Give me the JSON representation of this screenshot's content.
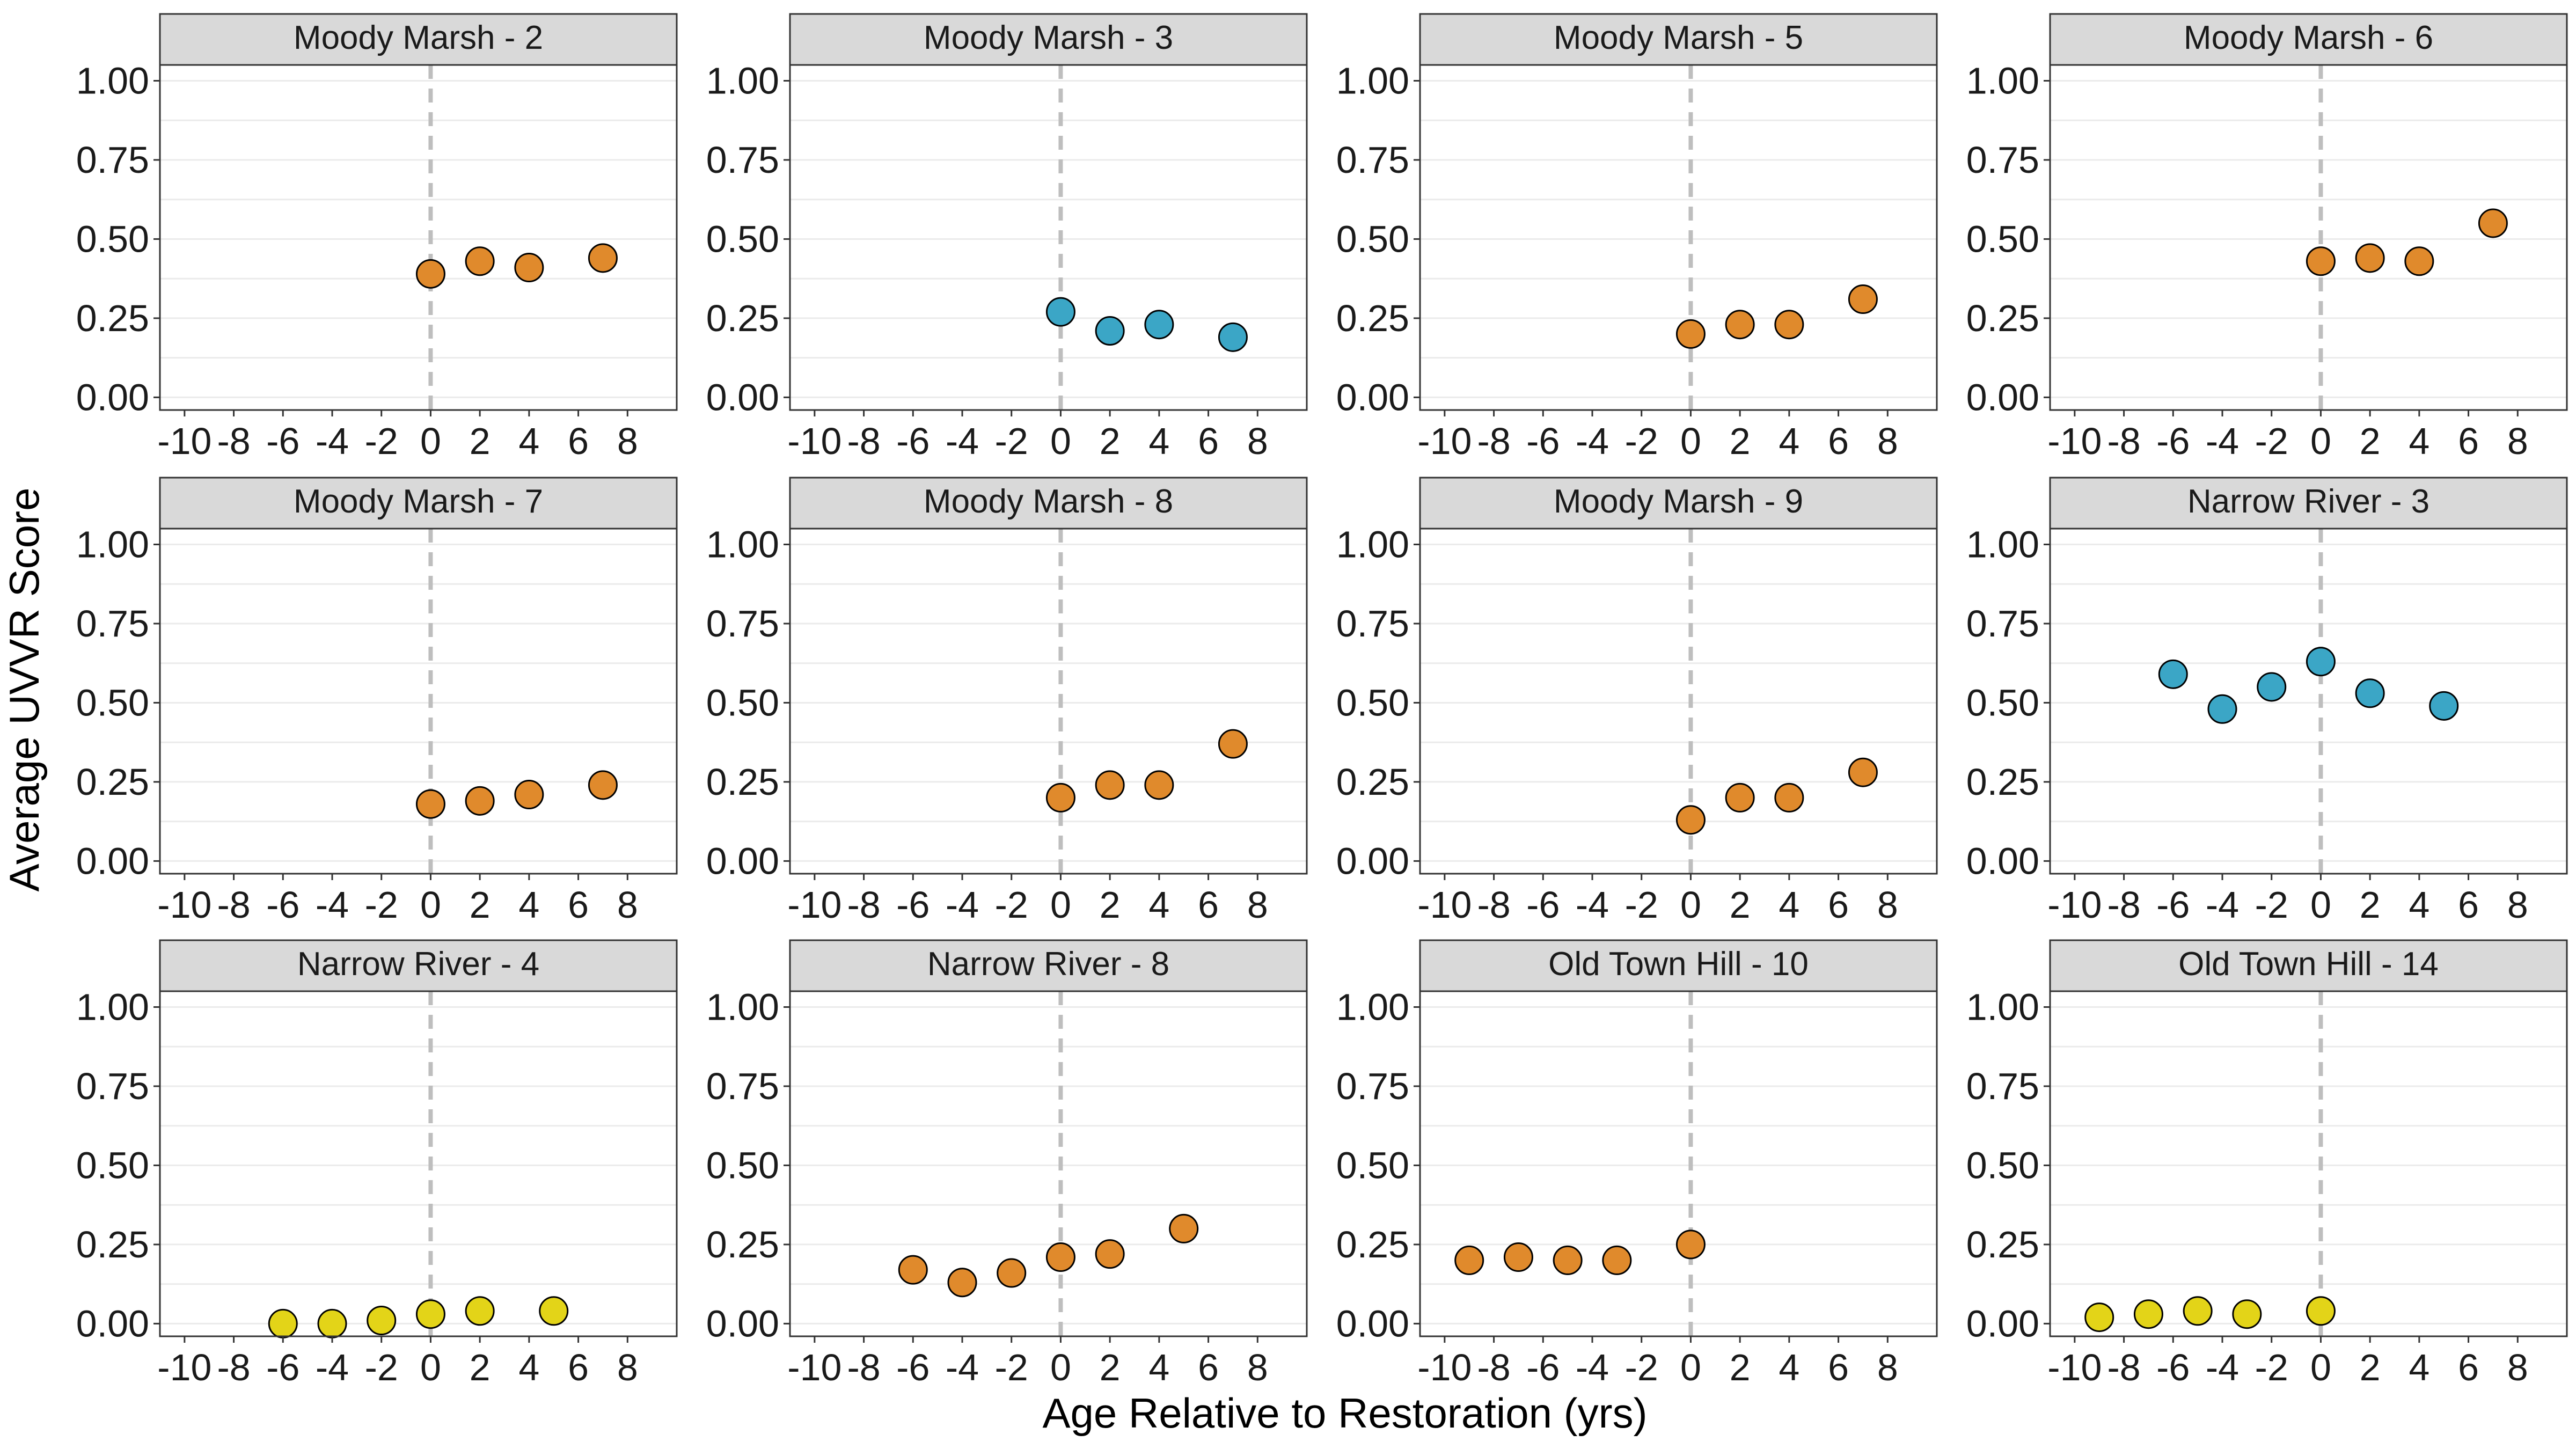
{
  "figure": {
    "ylabel": "Average UVVR Score",
    "xlabel": "Age Relative to Restoration (yrs)"
  },
  "colors": {
    "orange": "#E08A2C",
    "blue": "#3BA6C6",
    "yellow": "#E3D418",
    "strip": "#D9D9D9",
    "grid": "#EBEBEB",
    "refline": "#BEBEBE"
  },
  "chart_data": [
    {
      "type": "scatter",
      "title": "Moody Marsh - 2",
      "color": "orange",
      "x": [
        0,
        2,
        4,
        7
      ],
      "y": [
        0.39,
        0.43,
        0.41,
        0.44
      ],
      "xlim": [
        -11,
        10
      ],
      "ylim": [
        -0.04,
        1.05
      ],
      "xticks": [
        -10,
        -8,
        -6,
        -4,
        -2,
        0,
        2,
        4,
        6,
        8
      ],
      "yticks": [
        "0.00",
        "0.25",
        "0.50",
        "0.75",
        "1.00"
      ],
      "refline_x": 0
    },
    {
      "type": "scatter",
      "title": "Moody Marsh - 3",
      "color": "blue",
      "x": [
        0,
        2,
        4,
        7
      ],
      "y": [
        0.27,
        0.21,
        0.23,
        0.19
      ],
      "xlim": [
        -11,
        10
      ],
      "ylim": [
        -0.04,
        1.05
      ],
      "xticks": [
        -10,
        -8,
        -6,
        -4,
        -2,
        0,
        2,
        4,
        6,
        8
      ],
      "yticks": [
        "0.00",
        "0.25",
        "0.50",
        "0.75",
        "1.00"
      ],
      "refline_x": 0
    },
    {
      "type": "scatter",
      "title": "Moody Marsh - 5",
      "color": "orange",
      "x": [
        0,
        2,
        4,
        7
      ],
      "y": [
        0.2,
        0.23,
        0.23,
        0.31
      ],
      "xlim": [
        -11,
        10
      ],
      "ylim": [
        -0.04,
        1.05
      ],
      "xticks": [
        -10,
        -8,
        -6,
        -4,
        -2,
        0,
        2,
        4,
        6,
        8
      ],
      "yticks": [
        "0.00",
        "0.25",
        "0.50",
        "0.75",
        "1.00"
      ],
      "refline_x": 0
    },
    {
      "type": "scatter",
      "title": "Moody Marsh - 6",
      "color": "orange",
      "x": [
        0,
        2,
        4,
        7
      ],
      "y": [
        0.43,
        0.44,
        0.43,
        0.55
      ],
      "xlim": [
        -11,
        10
      ],
      "ylim": [
        -0.04,
        1.05
      ],
      "xticks": [
        -10,
        -8,
        -6,
        -4,
        -2,
        0,
        2,
        4,
        6,
        8
      ],
      "yticks": [
        "0.00",
        "0.25",
        "0.50",
        "0.75",
        "1.00"
      ],
      "refline_x": 0
    },
    {
      "type": "scatter",
      "title": "Moody Marsh - 7",
      "color": "orange",
      "x": [
        0,
        2,
        4,
        7
      ],
      "y": [
        0.18,
        0.19,
        0.21,
        0.24
      ],
      "xlim": [
        -11,
        10
      ],
      "ylim": [
        -0.04,
        1.05
      ],
      "xticks": [
        -10,
        -8,
        -6,
        -4,
        -2,
        0,
        2,
        4,
        6,
        8
      ],
      "yticks": [
        "0.00",
        "0.25",
        "0.50",
        "0.75",
        "1.00"
      ],
      "refline_x": 0
    },
    {
      "type": "scatter",
      "title": "Moody Marsh - 8",
      "color": "orange",
      "x": [
        0,
        2,
        4,
        7
      ],
      "y": [
        0.2,
        0.24,
        0.24,
        0.37
      ],
      "xlim": [
        -11,
        10
      ],
      "ylim": [
        -0.04,
        1.05
      ],
      "xticks": [
        -10,
        -8,
        -6,
        -4,
        -2,
        0,
        2,
        4,
        6,
        8
      ],
      "yticks": [
        "0.00",
        "0.25",
        "0.50",
        "0.75",
        "1.00"
      ],
      "refline_x": 0
    },
    {
      "type": "scatter",
      "title": "Moody Marsh - 9",
      "color": "orange",
      "x": [
        0,
        2,
        4,
        7
      ],
      "y": [
        0.13,
        0.2,
        0.2,
        0.28
      ],
      "xlim": [
        -11,
        10
      ],
      "ylim": [
        -0.04,
        1.05
      ],
      "xticks": [
        -10,
        -8,
        -6,
        -4,
        -2,
        0,
        2,
        4,
        6,
        8
      ],
      "yticks": [
        "0.00",
        "0.25",
        "0.50",
        "0.75",
        "1.00"
      ],
      "refline_x": 0
    },
    {
      "type": "scatter",
      "title": "Narrow River - 3",
      "color": "blue",
      "x": [
        -6,
        -4,
        -2,
        0,
        2,
        5
      ],
      "y": [
        0.59,
        0.48,
        0.55,
        0.63,
        0.53,
        0.49
      ],
      "xlim": [
        -11,
        10
      ],
      "ylim": [
        -0.04,
        1.05
      ],
      "xticks": [
        -10,
        -8,
        -6,
        -4,
        -2,
        0,
        2,
        4,
        6,
        8
      ],
      "yticks": [
        "0.00",
        "0.25",
        "0.50",
        "0.75",
        "1.00"
      ],
      "refline_x": 0
    },
    {
      "type": "scatter",
      "title": "Narrow River - 4",
      "color": "yellow",
      "x": [
        -6,
        -4,
        -2,
        0,
        2,
        5
      ],
      "y": [
        0.0,
        0.0,
        0.01,
        0.03,
        0.04,
        0.04
      ],
      "xlim": [
        -11,
        10
      ],
      "ylim": [
        -0.04,
        1.05
      ],
      "xticks": [
        -10,
        -8,
        -6,
        -4,
        -2,
        0,
        2,
        4,
        6,
        8
      ],
      "yticks": [
        "0.00",
        "0.25",
        "0.50",
        "0.75",
        "1.00"
      ],
      "refline_x": 0
    },
    {
      "type": "scatter",
      "title": "Narrow River - 8",
      "color": "orange",
      "x": [
        -6,
        -4,
        -2,
        0,
        2,
        5
      ],
      "y": [
        0.17,
        0.13,
        0.16,
        0.21,
        0.22,
        0.3
      ],
      "xlim": [
        -11,
        10
      ],
      "ylim": [
        -0.04,
        1.05
      ],
      "xticks": [
        -10,
        -8,
        -6,
        -4,
        -2,
        0,
        2,
        4,
        6,
        8
      ],
      "yticks": [
        "0.00",
        "0.25",
        "0.50",
        "0.75",
        "1.00"
      ],
      "refline_x": 0
    },
    {
      "type": "scatter",
      "title": "Old Town Hill - 10",
      "color": "orange",
      "x": [
        -9,
        -7,
        -5,
        -3,
        0
      ],
      "y": [
        0.2,
        0.21,
        0.2,
        0.2,
        0.25
      ],
      "xlim": [
        -11,
        10
      ],
      "ylim": [
        -0.04,
        1.05
      ],
      "xticks": [
        -10,
        -8,
        -6,
        -4,
        -2,
        0,
        2,
        4,
        6,
        8
      ],
      "yticks": [
        "0.00",
        "0.25",
        "0.50",
        "0.75",
        "1.00"
      ],
      "refline_x": 0
    },
    {
      "type": "scatter",
      "title": "Old Town Hill - 14",
      "color": "yellow",
      "x": [
        -9,
        -7,
        -5,
        -3,
        0
      ],
      "y": [
        0.02,
        0.03,
        0.04,
        0.03,
        0.04
      ],
      "xlim": [
        -11,
        10
      ],
      "ylim": [
        -0.04,
        1.05
      ],
      "xticks": [
        -10,
        -8,
        -6,
        -4,
        -2,
        0,
        2,
        4,
        6,
        8
      ],
      "yticks": [
        "0.00",
        "0.25",
        "0.50",
        "0.75",
        "1.00"
      ],
      "refline_x": 0
    }
  ]
}
